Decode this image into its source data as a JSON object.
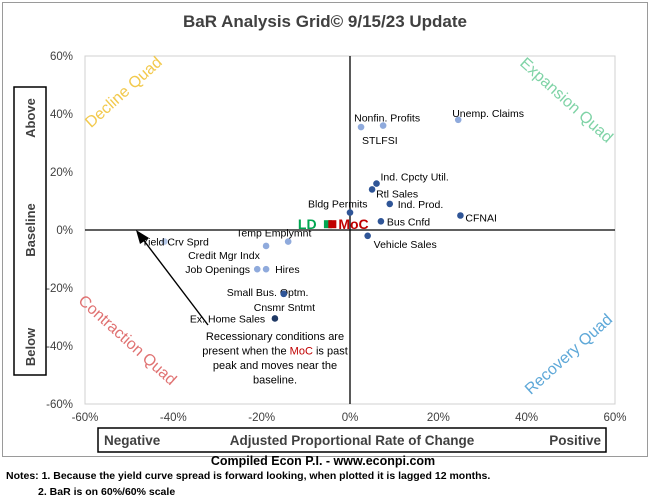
{
  "chart_data": {
    "type": "scatter",
    "title": "BaR Analysis Grid© 9/15/23 Update",
    "xlabel": "Adjusted Proportional Rate of Change",
    "x_neg_label": "Negative",
    "x_pos_label": "Positive",
    "ylabel_top": "Above",
    "ylabel_mid": "Baseline",
    "ylabel_bottom": "Below",
    "xlim": [
      -60,
      60
    ],
    "ylim": [
      -60,
      60
    ],
    "x_ticks": [
      -60,
      -40,
      -20,
      0,
      20,
      40,
      60
    ],
    "y_ticks": [
      -60,
      -40,
      -20,
      0,
      20,
      40,
      60
    ],
    "tick_format": "%",
    "quadrants": {
      "decline": {
        "label": "Decline Quad",
        "color": "#f2c94c"
      },
      "expansion": {
        "label": "Expansion Quad",
        "color": "#7fd3a6"
      },
      "contraction": {
        "label": "Contraction Quad",
        "color": "#e07272"
      },
      "recovery": {
        "label": "Recovery Quad",
        "color": "#5ea8d8"
      }
    },
    "points": [
      {
        "label": "Unemp. Claims",
        "x": 24.5,
        "y": 38,
        "color": "#8faadc"
      },
      {
        "label": "Nonfin. Profits",
        "x": 7.5,
        "y": 36,
        "color": "#8faadc"
      },
      {
        "label": "STLFSI",
        "x": 2.5,
        "y": 35.5,
        "color": "#8faadc"
      },
      {
        "label": "Ind. Cpcty Util.",
        "x": 6,
        "y": 16,
        "color": "#2f5597"
      },
      {
        "label": "Rtl Sales",
        "x": 5,
        "y": 14,
        "color": "#2f5597"
      },
      {
        "label": "Ind. Prod.",
        "x": 9,
        "y": 9,
        "color": "#2f5597"
      },
      {
        "label": "Bldg Permits",
        "x": 0,
        "y": 6,
        "color": "#2f5597"
      },
      {
        "label": "Bus Cnfd",
        "x": 7,
        "y": 3,
        "color": "#2f5597"
      },
      {
        "label": "CFNAI",
        "x": 25,
        "y": 5,
        "color": "#2f5597"
      },
      {
        "label": "Vehicle Sales",
        "x": 4,
        "y": -2,
        "color": "#2f5597"
      },
      {
        "label": "Yield Crv Sprd",
        "x": -42,
        "y": -4,
        "color": "#b4c7e7"
      },
      {
        "label": "Temp Emplymnt",
        "x": -14,
        "y": -4,
        "color": "#8faadc"
      },
      {
        "label": "Credit Mgr Indx",
        "x": -19,
        "y": -5.5,
        "color": "#8faadc"
      },
      {
        "label": "Job Openings",
        "x": -21,
        "y": -13.5,
        "color": "#8faadc"
      },
      {
        "label": "Hires",
        "x": -19,
        "y": -13.5,
        "color": "#8faadc"
      },
      {
        "label": "Small Bus. Optm.",
        "x": -15,
        "y": -22,
        "color": "#2f5597"
      },
      {
        "label": "Cnsmr Sntmt",
        "x": -15,
        "y": -22,
        "color": "#2f5597"
      },
      {
        "label": "Ex. Home Sales",
        "x": -17,
        "y": -30.5,
        "color": "#1f3864"
      }
    ],
    "markers": [
      {
        "label": "LD",
        "x": -5,
        "y": 2,
        "color": "#00a651"
      },
      {
        "label": "MoC",
        "x": -4,
        "y": 2,
        "color": "#c00000"
      }
    ],
    "annotation": {
      "lines": [
        "Recessionary conditions are",
        "present when the ",
        " is past",
        "peak and moves near the",
        "baseline."
      ],
      "highlight": "MoC",
      "highlight_color": "#c00000"
    },
    "credit": "Compiled Econ P.I. - www.econpi.com"
  },
  "notes": {
    "line1": "Notes: 1. Because the yield curve spread is forward looking, when plotted it is lagged 12 months.",
    "line2": "2. BaR is on 60%/60% scale"
  }
}
